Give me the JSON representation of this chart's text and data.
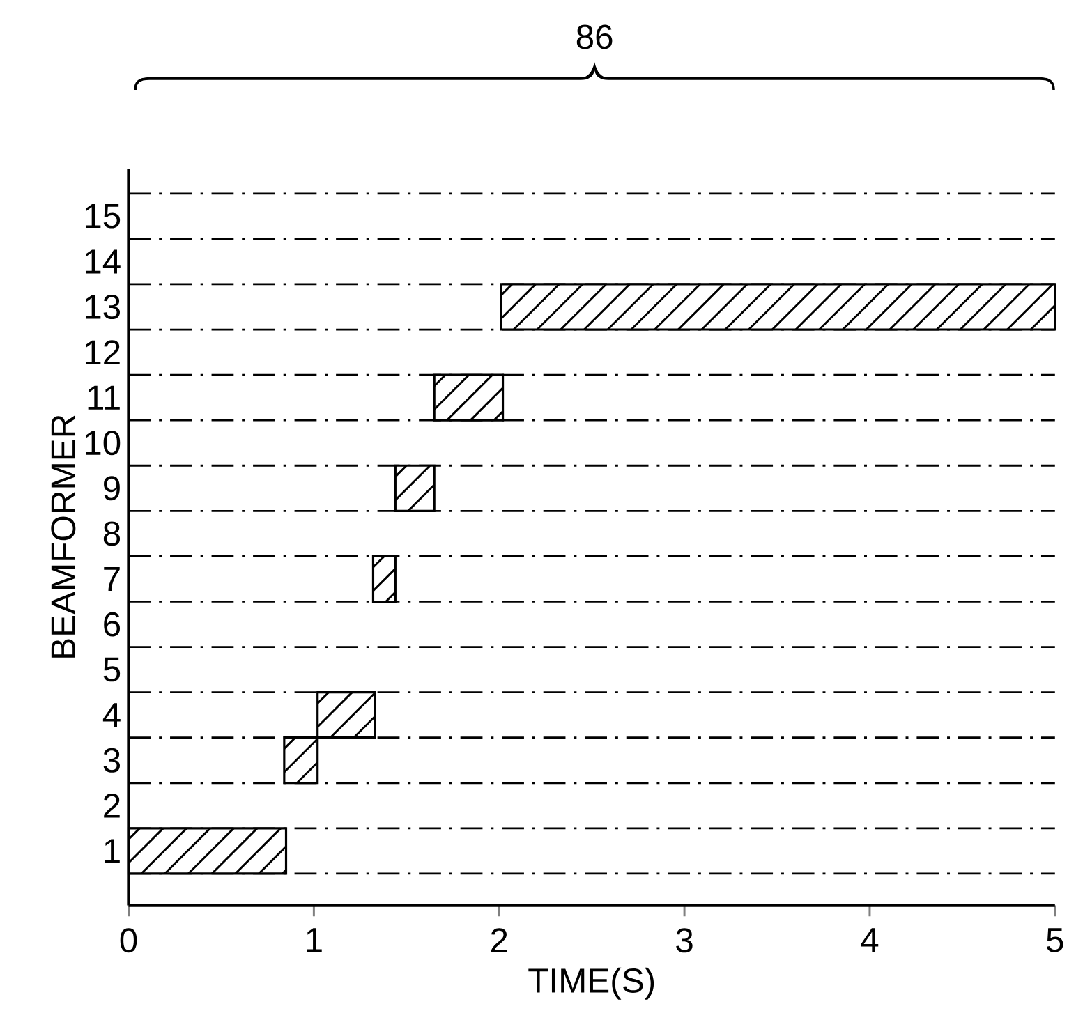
{
  "chart_data": {
    "type": "bar",
    "orientation": "horizontal",
    "xlabel": "TIME(S)",
    "ylabel": "BEAMFORMER",
    "annotations": [
      "86"
    ],
    "categories": [
      "15",
      "14",
      "13",
      "12",
      "11",
      "10",
      "9",
      "8",
      "7",
      "6",
      "5",
      "4",
      "3",
      "2",
      "1"
    ],
    "base": [
      null,
      null,
      2.01,
      null,
      1.65,
      null,
      1.44,
      null,
      1.32,
      null,
      null,
      1.02,
      0.84,
      null,
      0
    ],
    "values": [
      null,
      null,
      2.99,
      null,
      0.37,
      null,
      0.21,
      null,
      0.12,
      null,
      null,
      0.31,
      0.18,
      null,
      0.85
    ],
    "color": "#000000",
    "xlim": [
      0,
      5
    ],
    "xticks": [
      0,
      1,
      2,
      3,
      4,
      5
    ],
    "grid": "y"
  }
}
